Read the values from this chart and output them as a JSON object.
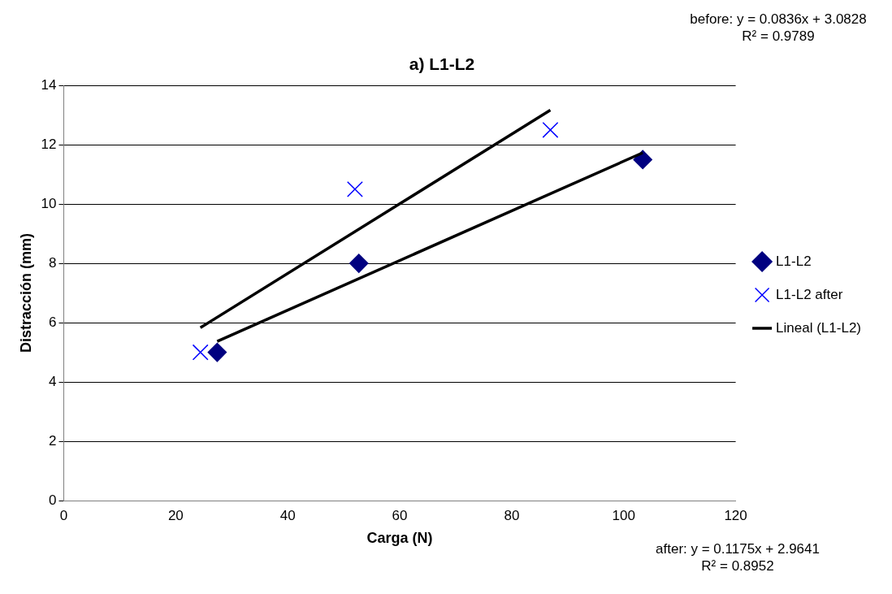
{
  "chart_data": {
    "type": "scatter",
    "title": "a) L1-L2",
    "xlabel": "Carga (N)",
    "ylabel": "Distracción (mm)",
    "xlim": [
      0,
      120
    ],
    "xticks": [
      0,
      20,
      40,
      60,
      80,
      100,
      120
    ],
    "ylim": [
      0,
      14
    ],
    "yticks": [
      0,
      2,
      4,
      6,
      8,
      10,
      12,
      14
    ],
    "grid": "y",
    "legend": "right",
    "series": [
      {
        "name": "L1-L2",
        "type": "scatter",
        "marker": "diamond",
        "color": "#000080",
        "x": [
          27.4,
          52.7,
          103.4
        ],
        "values": [
          5,
          8,
          11.5
        ]
      },
      {
        "name": "L1-L2 after",
        "type": "scatter",
        "marker": "cross",
        "color": "#0000ff",
        "x": [
          24.4,
          52,
          86.9
        ],
        "values": [
          5,
          10.5,
          12.5
        ]
      },
      {
        "name": "Lineal (L1-L2)",
        "type": "line",
        "marker": "none",
        "color": "#000000",
        "x": [
          27.4,
          103.4
        ],
        "values": [
          5.37,
          11.73
        ]
      },
      {
        "type": "line",
        "marker": "none",
        "color": "#000000",
        "x": [
          24.4,
          86.9
        ],
        "values": [
          5.83,
          13.17
        ]
      }
    ],
    "annotations": [
      "before: y = 0.0836x + 3.0828\nR² = 0.9789",
      "after: y = 0.1175x + 2.9641\nR² = 0.8952"
    ]
  }
}
